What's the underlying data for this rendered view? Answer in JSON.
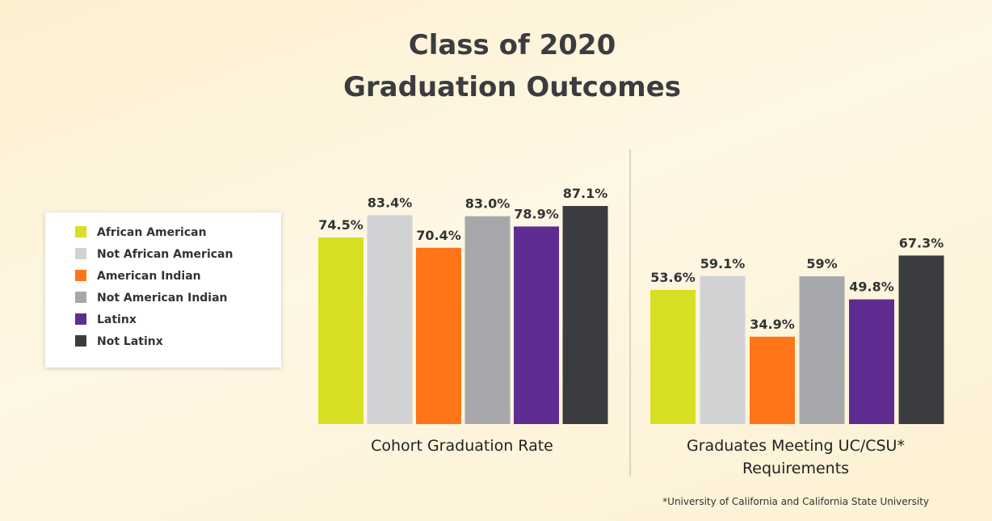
{
  "chart_data": {
    "type": "bar",
    "title": "Class of 2020 Graduation Outcomes",
    "categories": [
      "Cohort Graduation Rate",
      "Graduates Meeting UC/CSU* Requirements"
    ],
    "series": [
      {
        "name": "African American",
        "color": "#d7df23",
        "values": [
          74.5,
          53.6
        ],
        "value_labels": [
          "74.5%",
          "53.6%"
        ]
      },
      {
        "name": "Not African American",
        "color": "#d1d2d4",
        "values": [
          83.4,
          59.1
        ],
        "value_labels": [
          "83.4%",
          "59.1%"
        ]
      },
      {
        "name": "American Indian",
        "color": "#ff7517",
        "values": [
          70.4,
          34.9
        ],
        "value_labels": [
          "70.4%",
          "34.9%"
        ]
      },
      {
        "name": "Not American Indian",
        "color": "#a7a8ab",
        "values": [
          83.0,
          59
        ],
        "value_labels": [
          "83.0%",
          "59%"
        ]
      },
      {
        "name": "Latinx",
        "color": "#5f2c91",
        "values": [
          78.9,
          49.8
        ],
        "value_labels": [
          "78.9%",
          "49.8%"
        ]
      },
      {
        "name": "Not Latinx",
        "color": "#3b3c3f",
        "values": [
          87.1,
          67.3
        ],
        "value_labels": [
          "87.1%",
          "67.3%"
        ]
      }
    ],
    "legend": "left",
    "footnote": "*University of California and California State University"
  }
}
